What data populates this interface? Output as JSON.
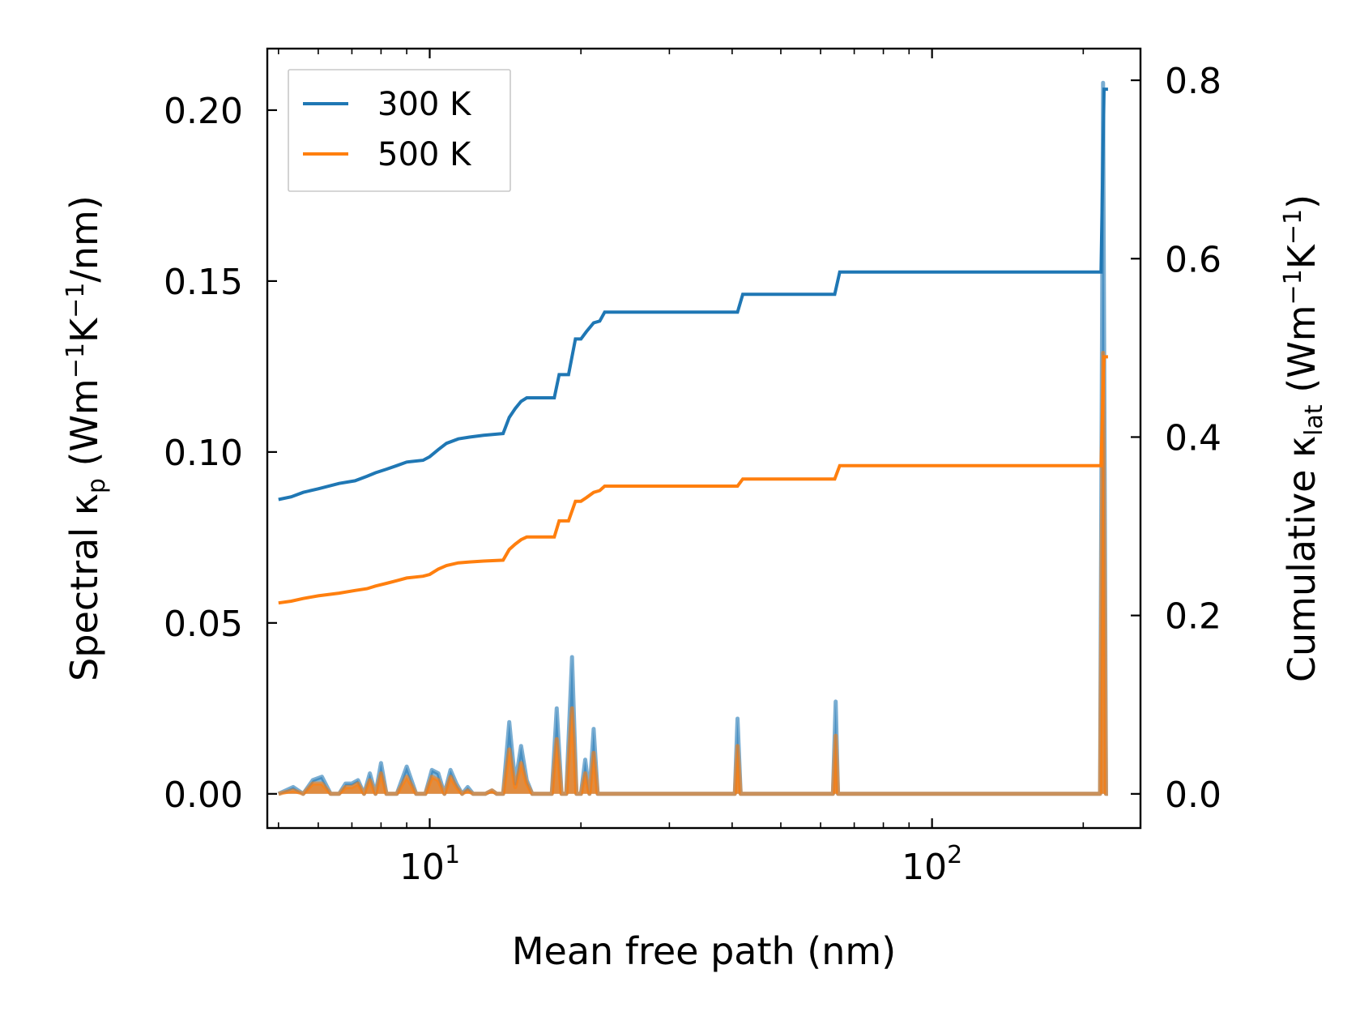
{
  "chart_data": {
    "type": "line",
    "title": "",
    "xlabel": "Mean free path (nm)",
    "xscale": "log",
    "xlim": [
      4.75,
      260
    ],
    "x_ticks": [
      {
        "value": 10,
        "base": "10",
        "exp": "1"
      },
      {
        "value": 100,
        "base": "10",
        "exp": "2"
      }
    ],
    "y_left": {
      "label_prefix": "Spectral κ",
      "label_sub": "p",
      "label_open": " (Wm",
      "label_sup1": "−1",
      "label_mid": "K",
      "label_sup2": "−1",
      "label_tail": "/nm)",
      "ylim": [
        -0.01,
        0.218
      ],
      "ticks": [
        0.0,
        0.05,
        0.1,
        0.15,
        0.2
      ],
      "tick_labels": [
        "0.00",
        "0.05",
        "0.10",
        "0.15",
        "0.20"
      ]
    },
    "y_right": {
      "label_prefix": "Cumulative κ",
      "label_sub": "lat",
      "label_open": " (Wm",
      "label_sup1": "−1",
      "label_mid": "K",
      "label_sup2": "−1",
      "label_tail": ")",
      "ylim": [
        -0.0383,
        0.8355
      ],
      "ticks": [
        0.0,
        0.2,
        0.4,
        0.6,
        0.8
      ],
      "tick_labels": [
        "0.0",
        "0.2",
        "0.4",
        "0.6",
        "0.8"
      ]
    },
    "legend": {
      "position": "top-left",
      "entries": [
        "300 K",
        "500 K"
      ]
    },
    "colors": {
      "300 K": "#1f77b4",
      "500 K": "#ff7f0e"
    },
    "cumulative_series": [
      {
        "name": "300 K",
        "axis": "right",
        "x": [
          5,
          5.3,
          5.6,
          6.0,
          6.6,
          7.1,
          7.5,
          7.8,
          8.2,
          8.6,
          9.0,
          9.7,
          10.0,
          10.4,
          10.8,
          11.4,
          12.0,
          12.8,
          14.0,
          14.4,
          14.8,
          15.2,
          15.6,
          16.5,
          17.7,
          18.1,
          18.9,
          19.5,
          20.0,
          20.5,
          21.2,
          21.8,
          22.3,
          41.0,
          42.0,
          64.0,
          65.5,
          217,
          220,
          224
        ],
        "y": [
          0.33,
          0.333,
          0.338,
          0.342,
          0.348,
          0.351,
          0.356,
          0.36,
          0.364,
          0.368,
          0.372,
          0.374,
          0.378,
          0.386,
          0.393,
          0.398,
          0.4,
          0.402,
          0.404,
          0.422,
          0.432,
          0.44,
          0.444,
          0.444,
          0.444,
          0.47,
          0.47,
          0.51,
          0.51,
          0.518,
          0.528,
          0.53,
          0.54,
          0.54,
          0.56,
          0.56,
          0.585,
          0.585,
          0.79,
          0.79
        ]
      },
      {
        "name": "500 K",
        "axis": "right",
        "x": [
          5,
          5.3,
          5.6,
          6.0,
          6.6,
          7.1,
          7.5,
          7.8,
          8.2,
          8.6,
          9.0,
          9.7,
          10.0,
          10.4,
          10.8,
          11.4,
          12.0,
          12.8,
          14.0,
          14.4,
          14.8,
          15.2,
          15.6,
          16.5,
          17.7,
          18.1,
          18.9,
          19.5,
          20.0,
          20.5,
          21.2,
          21.8,
          22.3,
          41.0,
          42.0,
          64.0,
          65.5,
          217,
          220,
          224
        ],
        "y": [
          0.214,
          0.216,
          0.219,
          0.222,
          0.225,
          0.228,
          0.23,
          0.233,
          0.236,
          0.239,
          0.242,
          0.244,
          0.246,
          0.252,
          0.256,
          0.259,
          0.26,
          0.261,
          0.262,
          0.274,
          0.28,
          0.285,
          0.288,
          0.288,
          0.288,
          0.306,
          0.306,
          0.328,
          0.328,
          0.332,
          0.338,
          0.34,
          0.345,
          0.345,
          0.353,
          0.353,
          0.368,
          0.368,
          0.49,
          0.49
        ]
      }
    ],
    "spectral_series": [
      {
        "name": "300 K",
        "axis": "left",
        "x": [
          5.0,
          5.35,
          5.6,
          5.85,
          6.1,
          6.35,
          6.6,
          6.8,
          7.0,
          7.2,
          7.4,
          7.6,
          7.8,
          8.0,
          8.2,
          8.6,
          9.0,
          9.4,
          9.8,
          10.1,
          10.4,
          10.7,
          11.0,
          11.3,
          11.6,
          11.9,
          12.2,
          12.5,
          12.7,
          12.9,
          13.3,
          13.6,
          14.0,
          14.4,
          14.8,
          15.2,
          15.6,
          16.0,
          17.5,
          17.9,
          18.3,
          18.7,
          19.2,
          19.6,
          20.0,
          20.4,
          20.8,
          21.2,
          21.6,
          22.1,
          22.5,
          40.5,
          41.0,
          41.6,
          42.2,
          63.5,
          64.3,
          65.0,
          65.8,
          214,
          216,
          219,
          222,
          224
        ],
        "y": [
          0.0,
          0.002,
          0.0,
          0.004,
          0.005,
          0.0,
          0.0,
          0.003,
          0.003,
          0.004,
          0.0,
          0.006,
          0.0,
          0.009,
          0.0,
          0.0,
          0.008,
          0.0,
          0.0,
          0.007,
          0.006,
          0.0,
          0.007,
          0.003,
          0.0,
          0.002,
          0.0,
          0.0,
          0.0,
          0.0,
          0.001,
          0.0,
          0.0,
          0.021,
          0.003,
          0.014,
          0.004,
          0.0,
          0.0,
          0.025,
          0.0,
          0.0,
          0.04,
          0.0,
          0.0,
          0.01,
          0.0,
          0.019,
          0.0,
          0.0,
          0.0,
          0.0,
          0.022,
          0.0,
          0.0,
          0.0,
          0.027,
          0.0,
          0.0,
          0.0,
          0.0,
          0.208,
          0.0,
          0.0
        ]
      },
      {
        "name": "500 K",
        "axis": "left",
        "x": [
          5.0,
          5.35,
          5.6,
          5.85,
          6.1,
          6.35,
          6.6,
          6.8,
          7.0,
          7.2,
          7.4,
          7.6,
          7.8,
          8.0,
          8.2,
          8.6,
          9.0,
          9.4,
          9.8,
          10.1,
          10.4,
          10.7,
          11.0,
          11.3,
          11.6,
          11.9,
          12.2,
          12.5,
          12.7,
          12.9,
          13.3,
          13.6,
          14.0,
          14.4,
          14.8,
          15.2,
          15.6,
          16.0,
          17.5,
          17.9,
          18.3,
          18.7,
          19.2,
          19.6,
          20.0,
          20.4,
          20.8,
          21.2,
          21.6,
          22.1,
          22.5,
          40.5,
          41.0,
          41.6,
          42.2,
          63.5,
          64.3,
          65.0,
          65.8,
          214,
          216,
          219,
          222,
          224
        ],
        "y": [
          0.0,
          0.001,
          0.0,
          0.003,
          0.003,
          0.0,
          0.0,
          0.002,
          0.002,
          0.003,
          0.0,
          0.004,
          0.0,
          0.006,
          0.0,
          0.0,
          0.005,
          0.0,
          0.0,
          0.005,
          0.004,
          0.0,
          0.005,
          0.002,
          0.0,
          0.001,
          0.0,
          0.0,
          0.0,
          0.0,
          0.001,
          0.0,
          0.0,
          0.013,
          0.002,
          0.009,
          0.003,
          0.0,
          0.0,
          0.016,
          0.0,
          0.0,
          0.025,
          0.0,
          0.0,
          0.006,
          0.0,
          0.012,
          0.0,
          0.0,
          0.0,
          0.0,
          0.014,
          0.0,
          0.0,
          0.0,
          0.017,
          0.0,
          0.0,
          0.0,
          0.0,
          0.129,
          0.0,
          0.0
        ]
      }
    ]
  }
}
